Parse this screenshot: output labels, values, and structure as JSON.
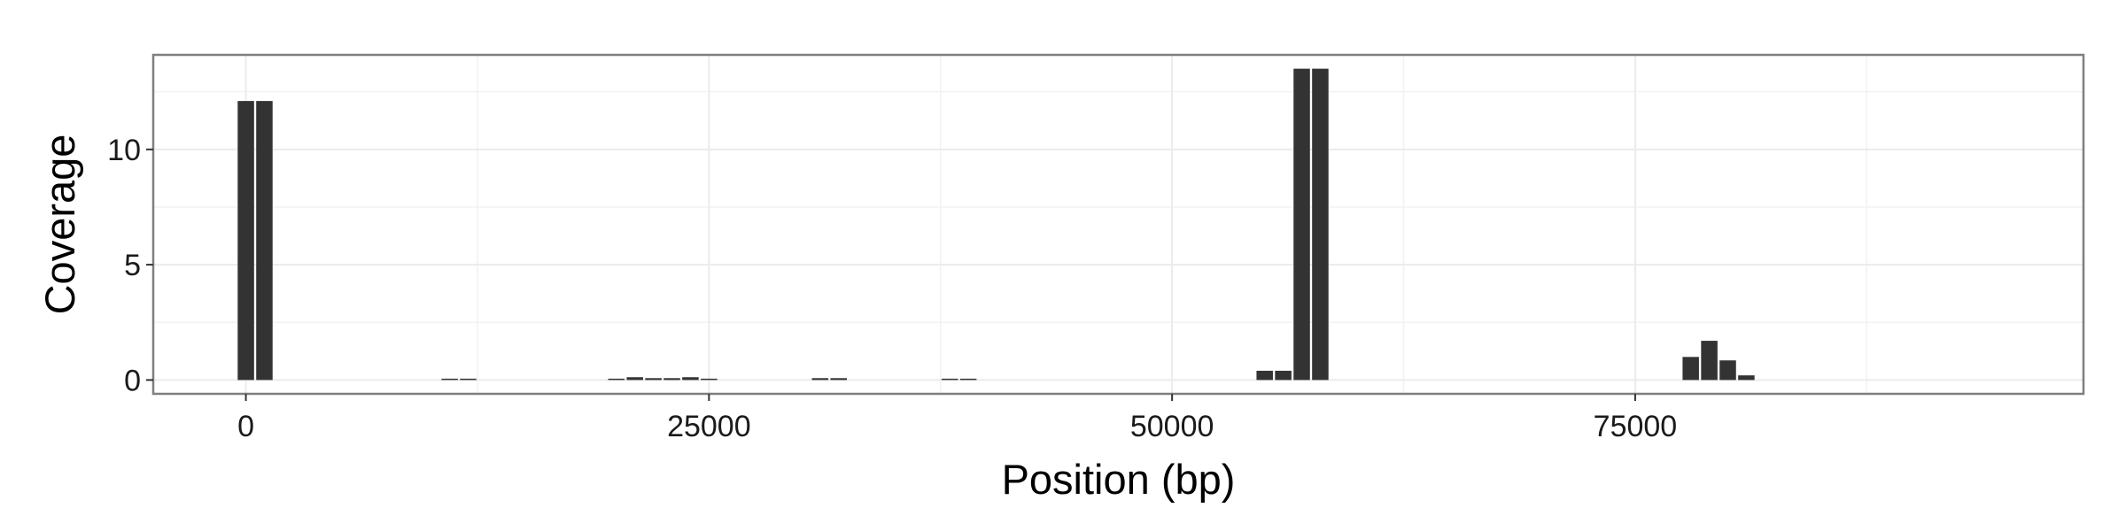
{
  "chart_data": {
    "type": "bar",
    "title": "",
    "xlabel": "Position (bp)",
    "ylabel": "Coverage",
    "xlim": [
      -5000,
      99200
    ],
    "ylim": [
      -0.6,
      14.1
    ],
    "x_ticks": [
      0,
      25000,
      50000,
      75000
    ],
    "y_ticks": [
      0,
      5,
      10
    ],
    "x_minor_ticks": [
      12500,
      37500,
      62500,
      87500
    ],
    "y_minor_ticks": [
      2.5,
      7.5,
      12.5
    ],
    "grid": true,
    "legend": "none",
    "bin_width": 1000,
    "bar_color": "#333333",
    "background": "#ffffff",
    "grid_color": "#ebebeb",
    "panel_border_color": "#7f7f7f",
    "x": [
      0,
      1000,
      11000,
      12000,
      20000,
      21000,
      22000,
      23000,
      24000,
      25000,
      31000,
      32000,
      38000,
      39000,
      55000,
      56000,
      57000,
      58000,
      78000,
      79000,
      80000,
      81000
    ],
    "values": [
      12.1,
      12.1,
      0.05,
      0.05,
      0.05,
      0.12,
      0.08,
      0.08,
      0.12,
      0.05,
      0.08,
      0.08,
      0.05,
      0.05,
      0.4,
      0.4,
      13.5,
      13.5,
      1.0,
      1.7,
      0.85,
      0.2
    ]
  }
}
